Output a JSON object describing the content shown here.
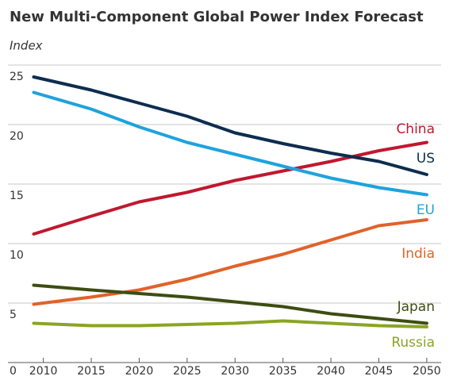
{
  "chart_data": {
    "type": "line",
    "title": "New Multi-Component Global Power Index Forecast",
    "y_label": "Index",
    "x": [
      2009,
      2015,
      2020,
      2025,
      2030,
      2035,
      2040,
      2045,
      2050
    ],
    "series": [
      {
        "name": "China",
        "color": "#c0182f",
        "values": [
          10.8,
          12.3,
          13.5,
          14.3,
          15.3,
          16.1,
          16.9,
          17.8,
          18.5
        ]
      },
      {
        "name": "US",
        "color": "#0d2d4f",
        "values": [
          24.0,
          22.9,
          21.8,
          20.7,
          19.3,
          18.4,
          17.6,
          16.9,
          15.8
        ]
      },
      {
        "name": "EU",
        "color": "#1ea3dc",
        "values": [
          22.7,
          21.3,
          19.8,
          18.5,
          17.5,
          16.5,
          15.5,
          14.7,
          14.1
        ]
      },
      {
        "name": "India",
        "color": "#e0622a",
        "values": [
          4.9,
          5.5,
          6.1,
          7.0,
          8.1,
          9.1,
          10.3,
          11.5,
          12.0
        ]
      },
      {
        "name": "Japan",
        "color": "#3d4d12",
        "values": [
          6.5,
          6.1,
          5.8,
          5.5,
          5.1,
          4.7,
          4.1,
          3.7,
          3.3
        ]
      },
      {
        "name": "Russia",
        "color": "#8aa523",
        "values": [
          3.3,
          3.1,
          3.1,
          3.2,
          3.3,
          3.5,
          3.3,
          3.1,
          3.0
        ]
      }
    ],
    "xlim": [
      2007.3,
      2051.5
    ],
    "xticks": [
      2010,
      2015,
      2020,
      2025,
      2030,
      2035,
      2040,
      2045,
      2050
    ],
    "ylim": [
      0,
      25
    ],
    "yticks": [
      0,
      5,
      10,
      15,
      20,
      25
    ],
    "grid": true
  }
}
